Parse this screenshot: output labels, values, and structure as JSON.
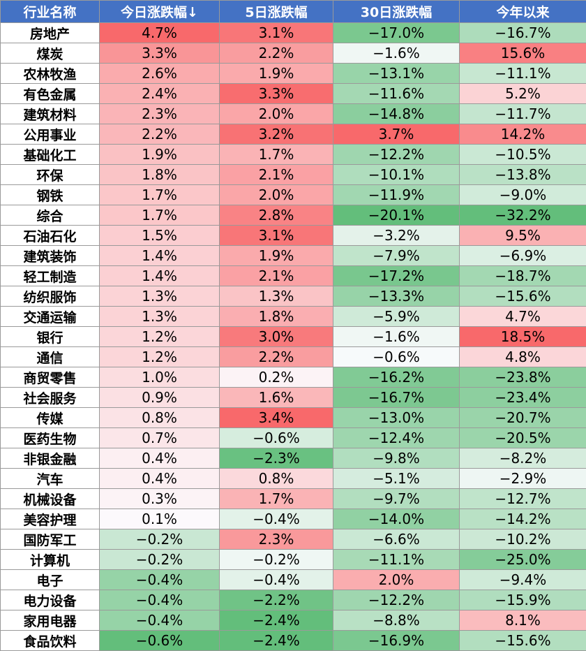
{
  "chart_data": {
    "type": "table",
    "columns": [
      "行业名称",
      "今日涨跌幅↓",
      "5日涨跌幅",
      "30日涨跌幅",
      "今年以来"
    ],
    "rows": [
      [
        "房地产",
        "4.7%",
        "3.1%",
        "−17.0%",
        "−16.7%"
      ],
      [
        "煤炭",
        "3.3%",
        "2.2%",
        "−1.6%",
        "15.6%"
      ],
      [
        "农林牧渔",
        "2.6%",
        "1.9%",
        "−13.1%",
        "−11.1%"
      ],
      [
        "有色金属",
        "2.4%",
        "3.3%",
        "−11.6%",
        "5.2%"
      ],
      [
        "建筑材料",
        "2.3%",
        "2.0%",
        "−14.8%",
        "−11.7%"
      ],
      [
        "公用事业",
        "2.2%",
        "3.2%",
        "3.7%",
        "14.2%"
      ],
      [
        "基础化工",
        "1.9%",
        "1.7%",
        "−12.2%",
        "−10.5%"
      ],
      [
        "环保",
        "1.8%",
        "2.1%",
        "−10.1%",
        "−13.8%"
      ],
      [
        "钢铁",
        "1.7%",
        "2.0%",
        "−11.9%",
        "−9.0%"
      ],
      [
        "综合",
        "1.7%",
        "2.8%",
        "−20.1%",
        "−32.2%"
      ],
      [
        "石油石化",
        "1.5%",
        "3.1%",
        "−3.2%",
        "9.5%"
      ],
      [
        "建筑装饰",
        "1.4%",
        "1.9%",
        "−7.9%",
        "−6.9%"
      ],
      [
        "轻工制造",
        "1.4%",
        "2.1%",
        "−17.2%",
        "−18.7%"
      ],
      [
        "纺织服饰",
        "1.3%",
        "1.3%",
        "−13.3%",
        "−15.6%"
      ],
      [
        "交通运输",
        "1.3%",
        "1.8%",
        "−5.9%",
        "4.7%"
      ],
      [
        "银行",
        "1.2%",
        "3.0%",
        "−1.6%",
        "18.5%"
      ],
      [
        "通信",
        "1.2%",
        "2.2%",
        "−0.6%",
        "4.8%"
      ],
      [
        "商贸零售",
        "1.0%",
        "0.2%",
        "−16.2%",
        "−23.8%"
      ],
      [
        "社会服务",
        "0.9%",
        "1.6%",
        "−16.7%",
        "−23.4%"
      ],
      [
        "传媒",
        "0.8%",
        "3.4%",
        "−13.0%",
        "−20.7%"
      ],
      [
        "医药生物",
        "0.7%",
        "−0.6%",
        "−12.4%",
        "−20.5%"
      ],
      [
        "非银金融",
        "0.4%",
        "−2.3%",
        "−9.8%",
        "−8.2%"
      ],
      [
        "汽车",
        "0.4%",
        "0.8%",
        "−5.1%",
        "−2.9%"
      ],
      [
        "机械设备",
        "0.3%",
        "1.7%",
        "−9.7%",
        "−12.7%"
      ],
      [
        "美容护理",
        "0.1%",
        "−0.4%",
        "−14.0%",
        "−14.2%"
      ],
      [
        "国防军工",
        "−0.2%",
        "2.3%",
        "−6.6%",
        "−10.2%"
      ],
      [
        "计算机",
        "−0.2%",
        "−0.2%",
        "−11.1%",
        "−25.0%"
      ],
      [
        "电子",
        "−0.4%",
        "−0.4%",
        "2.0%",
        "−9.4%"
      ],
      [
        "电力设备",
        "−0.4%",
        "−2.2%",
        "−12.2%",
        "−15.9%"
      ],
      [
        "家用电器",
        "−0.4%",
        "−2.4%",
        "−8.8%",
        "8.1%"
      ],
      [
        "食品饮料",
        "−0.6%",
        "−2.4%",
        "−16.9%",
        "−15.6%"
      ]
    ],
    "colors": {
      "header_bg": "#4472c4",
      "header_text": "#ffffff",
      "positive_max": "#f8696b",
      "negative_max": "#63be7b",
      "neutral": "#fcfcff"
    }
  }
}
